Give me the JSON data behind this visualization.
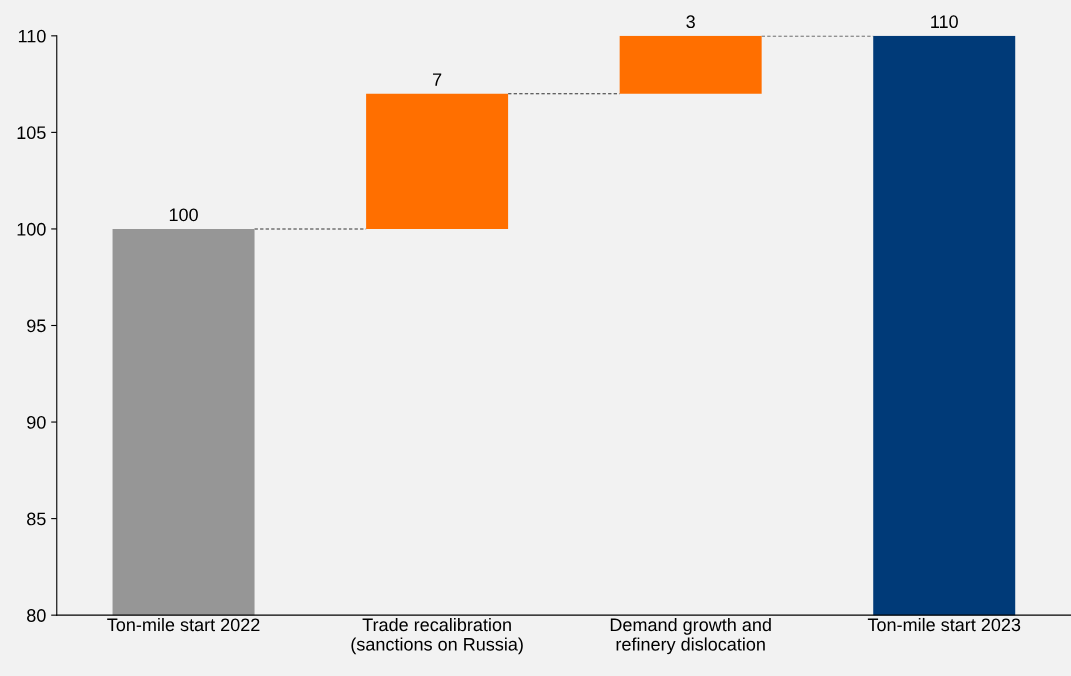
{
  "chart_data": {
    "type": "bar",
    "categories": [
      "Ton-mile start 2022",
      "Trade recalibration\n(sanctions on Russia)",
      "Demand growth and\nrefinery dislocation",
      "Ton-mile start 2023"
    ],
    "values": [
      100,
      7,
      3,
      110
    ],
    "base": [
      null,
      100,
      107,
      null
    ],
    "colors": [
      "#969696",
      "#ff6f00",
      "#ff6f00",
      "#003a78"
    ],
    "data_labels": true,
    "ylim": [
      80,
      110
    ],
    "yticks": [
      80,
      85,
      90,
      95,
      100,
      105,
      110
    ],
    "grid": false,
    "legend": false
  }
}
